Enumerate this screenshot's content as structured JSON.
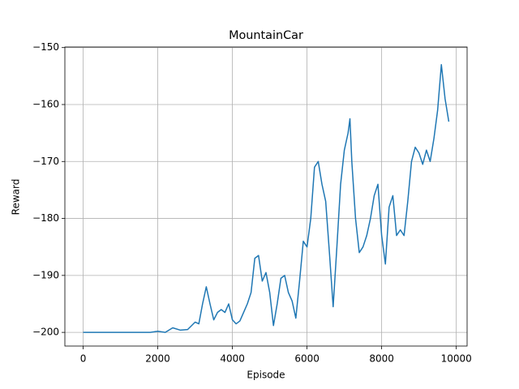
{
  "chart_data": {
    "type": "line",
    "title": "MountainCar",
    "x_label": "Episode",
    "y_label": "Reward",
    "x": [
      0,
      1800,
      2000,
      2200,
      2400,
      2600,
      2800,
      3000,
      3100,
      3200,
      3300,
      3400,
      3500,
      3600,
      3700,
      3800,
      3900,
      4000,
      4100,
      4200,
      4300,
      4400,
      4500,
      4600,
      4700,
      4800,
      4900,
      5000,
      5100,
      5200,
      5300,
      5400,
      5500,
      5600,
      5700,
      5800,
      5900,
      6000,
      6100,
      6200,
      6300,
      6400,
      6500,
      6600,
      6700,
      6800,
      6900,
      7000,
      7100,
      7150,
      7200,
      7300,
      7400,
      7500,
      7600,
      7700,
      7800,
      7900,
      8000,
      8100,
      8200,
      8300,
      8400,
      8500,
      8600,
      8700,
      8800,
      8900,
      9000,
      9100,
      9200,
      9300,
      9400,
      9500,
      9600,
      9700,
      9800
    ],
    "series": [
      {
        "name": "Reward",
        "color": "#1f77b4",
        "values": [
          -200,
          -200,
          -199.8,
          -200,
          -199.2,
          -199.6,
          -199.5,
          -198.2,
          -198.5,
          -195,
          -192,
          -195,
          -197.8,
          -196.5,
          -196,
          -196.5,
          -195,
          -197.8,
          -198.5,
          -198,
          -196.5,
          -195,
          -193,
          -187,
          -186.5,
          -191,
          -189.5,
          -193,
          -198.8,
          -195,
          -190.5,
          -190,
          -193,
          -194.5,
          -197.5,
          -191,
          -184,
          -185,
          -180,
          -171,
          -170,
          -174,
          -177,
          -186,
          -195.5,
          -185,
          -174,
          -168,
          -165,
          -162.5,
          -170,
          -180,
          -186,
          -185,
          -183,
          -180,
          -176,
          -174,
          -183,
          -188,
          -178,
          -176,
          -183,
          -182,
          -183,
          -177,
          -170,
          -167.5,
          -168.5,
          -170.5,
          -168,
          -170,
          -166,
          -161,
          -153,
          -159,
          -163
        ]
      }
    ],
    "xlim": [
      -490,
      10290
    ],
    "ylim": [
      -202.4,
      -149.9
    ],
    "xticks": [
      0,
      2000,
      4000,
      6000,
      8000,
      10000
    ],
    "yticks": [
      {
        "value": -200,
        "label": "−200"
      },
      {
        "value": -190,
        "label": "−190"
      },
      {
        "value": -180,
        "label": "−180"
      },
      {
        "value": -170,
        "label": "−170"
      },
      {
        "value": -160,
        "label": "−160"
      },
      {
        "value": -150,
        "label": "−150"
      }
    ],
    "grid": true
  }
}
